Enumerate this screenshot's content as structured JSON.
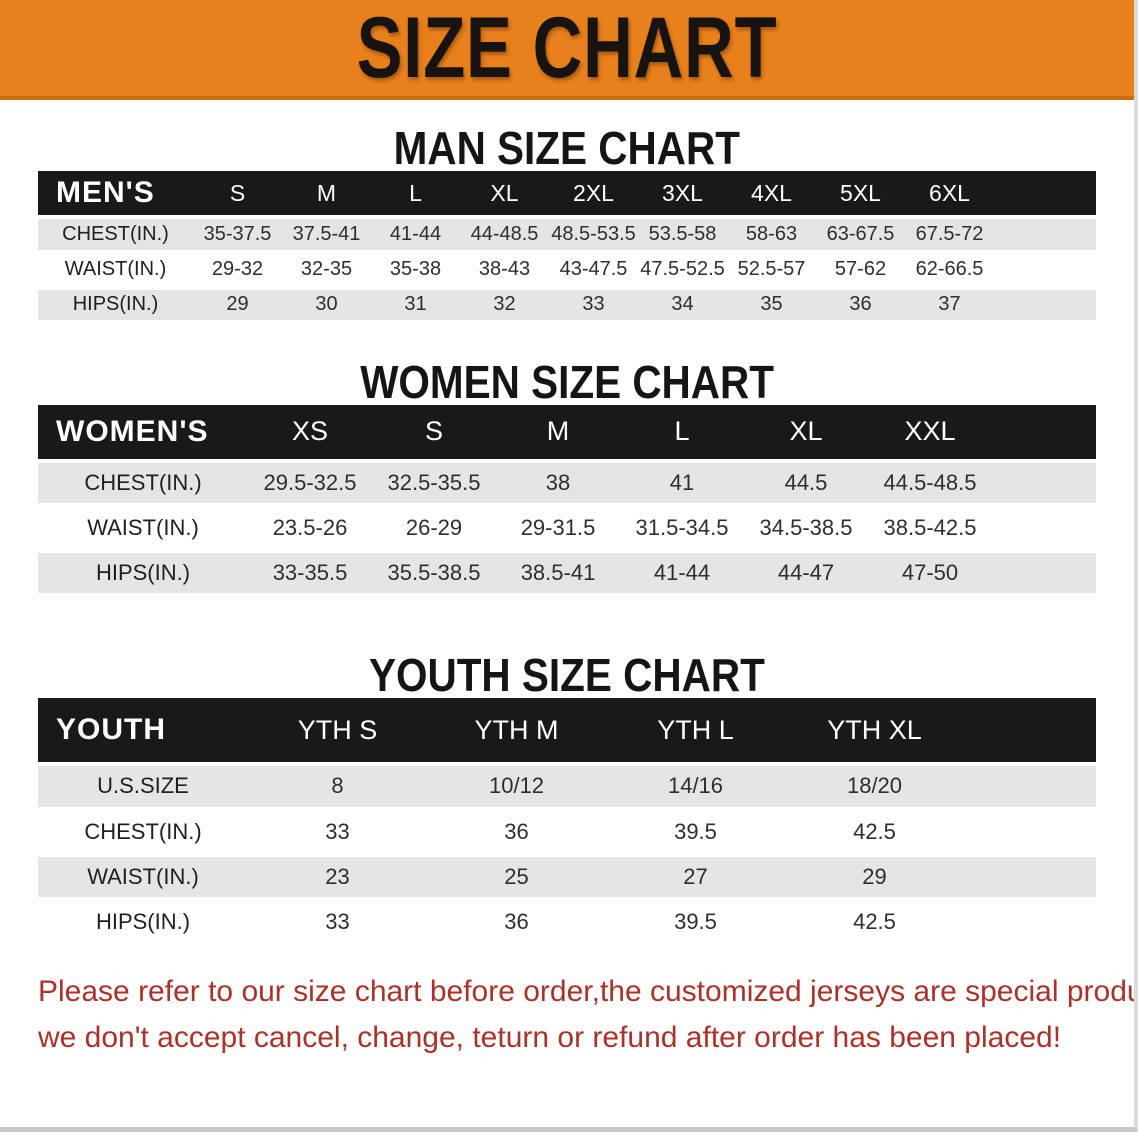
{
  "banner": {
    "title": "SIZE CHART",
    "bg_color": "#E8811B",
    "edge_color": "#C96F12"
  },
  "sections": [
    {
      "heading": "MAN SIZE CHART",
      "table": {
        "header_label": "MEN'S",
        "columns": [
          "S",
          "M",
          "L",
          "XL",
          "2XL",
          "3XL",
          "4XL",
          "5XL",
          "6XL"
        ],
        "rows": [
          {
            "label": "CHEST(IN.)",
            "values": [
              "35-37.5",
              "37.5-41",
              "41-44",
              "44-48.5",
              "48.5-53.5",
              "53.5-58",
              "58-63",
              "63-67.5",
              "67.5-72"
            ]
          },
          {
            "label": "WAIST(IN.)",
            "values": [
              "29-32",
              "32-35",
              "35-38",
              "38-43",
              "43-47.5",
              "47.5-52.5",
              "52.5-57",
              "57-62",
              "62-66.5"
            ]
          },
          {
            "label": "HIPS(IN.)",
            "values": [
              "29",
              "30",
              "31",
              "32",
              "33",
              "34",
              "35",
              "36",
              "37"
            ]
          }
        ]
      }
    },
    {
      "heading": "WOMEN SIZE CHART",
      "table": {
        "header_label": "WOMEN'S",
        "columns": [
          "XS",
          "S",
          "M",
          "L",
          "XL",
          "XXL"
        ],
        "rows": [
          {
            "label": "CHEST(IN.)",
            "values": [
              "29.5-32.5",
              "32.5-35.5",
              "38",
              "41",
              "44.5",
              "44.5-48.5"
            ]
          },
          {
            "label": "WAIST(IN.)",
            "values": [
              "23.5-26",
              "26-29",
              "29-31.5",
              "31.5-34.5",
              "34.5-38.5",
              "38.5-42.5"
            ]
          },
          {
            "label": "HIPS(IN.)",
            "values": [
              "33-35.5",
              "35.5-38.5",
              "38.5-41",
              "41-44",
              "44-47",
              "47-50"
            ]
          }
        ]
      }
    },
    {
      "heading": "YOUTH SIZE CHART",
      "table": {
        "header_label": "YOUTH",
        "columns": [
          "YTH S",
          "YTH M",
          "YTH L",
          "YTH XL"
        ],
        "rows": [
          {
            "label": "U.S.SIZE",
            "values": [
              "8",
              "10/12",
              "14/16",
              "18/20"
            ]
          },
          {
            "label": "CHEST(IN.)",
            "values": [
              "33",
              "36",
              "39.5",
              "42.5"
            ]
          },
          {
            "label": "WAIST(IN.)",
            "values": [
              "23",
              "25",
              "27",
              "29"
            ]
          },
          {
            "label": "HIPS(IN.)",
            "values": [
              "33",
              "36",
              "39.5",
              "42.5"
            ]
          }
        ]
      }
    }
  ],
  "disclaimer": {
    "line1": "Please refer to our size chart before order,the customized jerseys are special products,",
    "line2": "we don't accept cancel, change, teturn or refund after order has been placed!",
    "color": "#A93229"
  },
  "colors": {
    "table_header_bg": "#1B1917",
    "table_header_text": "#FFFFFF",
    "row_shaded": "#E4E5E7",
    "row_plain": "#FFFFFF",
    "heading_text": "#151515"
  }
}
